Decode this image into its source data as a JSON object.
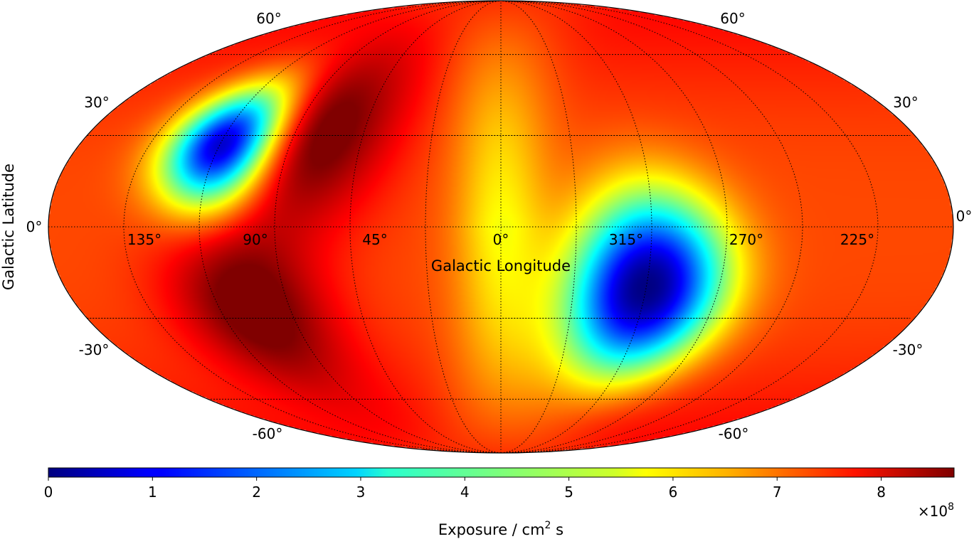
{
  "chart_data": {
    "type": "heatmap",
    "projection": "mollweide",
    "colormap": "jet",
    "xlabel": "Galactic Longitude",
    "ylabel": "Galactic Latitude",
    "longitude_tick_labels": [
      "135°",
      "90°",
      "45°",
      "0°",
      "315°",
      "270°",
      "225°"
    ],
    "longitude_tick_values": [
      135,
      90,
      45,
      0,
      315,
      270,
      225
    ],
    "latitude_tick_labels_left": [
      "60°",
      "30°",
      "0°",
      "-30°",
      "-60°"
    ],
    "latitude_tick_labels_right": [
      "60°",
      "30°",
      "0°",
      "-30°",
      "-60°"
    ],
    "latitude_tick_values": [
      60,
      30,
      0,
      -30,
      -60
    ],
    "grid": true,
    "colorbar": {
      "label_prefix": "Exposure / cm",
      "label_sup": "2",
      "label_suffix": " s",
      "range": [
        0,
        8.7
      ],
      "ticks": [
        "0",
        "1",
        "2",
        "3",
        "4",
        "5",
        "6",
        "7",
        "8"
      ],
      "tick_values": [
        0,
        1,
        2,
        3,
        4,
        5,
        6,
        7,
        8
      ],
      "multiplier_base": "×10",
      "multiplier_exp": "8",
      "orientation": "horizontal",
      "placement": "bottom"
    },
    "features": [
      {
        "kind": "minimum",
        "lon": 300,
        "lat": -20,
        "value": 0
      },
      {
        "kind": "minimum",
        "lon": 118,
        "lat": 27,
        "value": 1.7
      },
      {
        "kind": "maximum",
        "lon": 80,
        "lat": 30,
        "value": 8.7
      },
      {
        "kind": "maximum",
        "lon": 105,
        "lat": -25,
        "value": 8.7
      },
      {
        "kind": "meridian",
        "lon": 0,
        "value": 5.4
      },
      {
        "kind": "background",
        "value": 7.0
      }
    ]
  }
}
